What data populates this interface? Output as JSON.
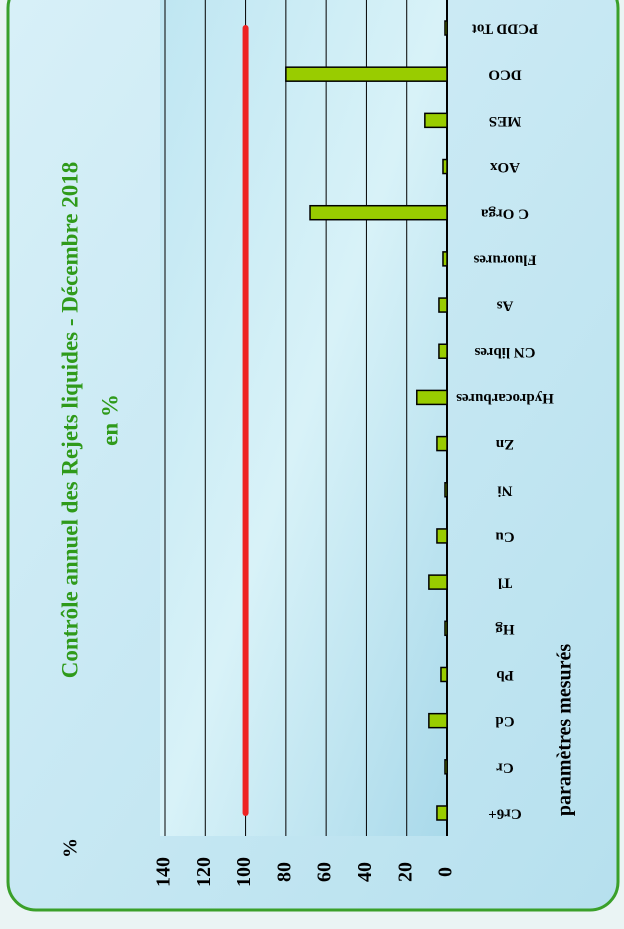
{
  "chart_data": {
    "type": "bar",
    "title": "Contrôle annuel des Rejets liquides - Décembre 2018",
    "subtitle": "en %",
    "y_label": "%",
    "x_label": "paramètres mesurés",
    "categories": [
      "Cr6+",
      "Cr",
      "Cd",
      "Pb",
      "Hg",
      "Tl",
      "Cu",
      "Ni",
      "Zn",
      "Hydrocarbures",
      "CN libres",
      "As",
      "Fluorures",
      "C Orga",
      "AOx",
      "MES",
      "DCO",
      "PCDD Tot"
    ],
    "values": [
      5,
      1,
      9,
      3,
      1,
      9,
      5,
      1,
      5,
      15,
      4,
      4,
      2,
      68,
      2,
      11,
      80,
      1
    ],
    "color": "#99cc00",
    "reference_line": {
      "value": 100,
      "color": "#ee2222"
    },
    "ylim": [
      0,
      140
    ],
    "yticks": [
      0,
      20,
      40,
      60,
      80,
      100,
      120,
      140
    ],
    "grid": true
  }
}
